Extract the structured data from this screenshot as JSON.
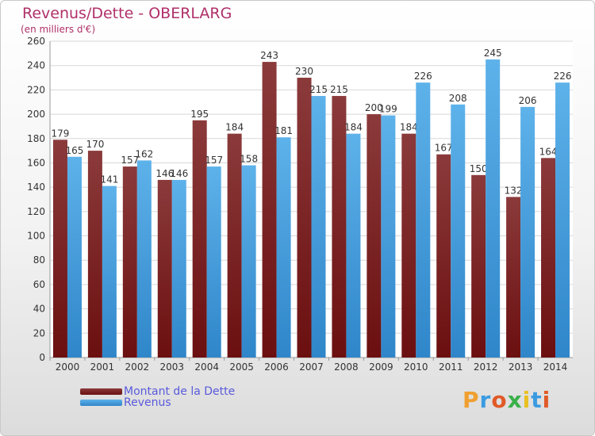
{
  "colors": {
    "debt": "#6b0f10",
    "debt_light": "#8b3a3b",
    "revenue": "#2f86c9",
    "revenue_light": "#5eb2ea",
    "title": "#b0306a",
    "legend_text": "#5a5adc"
  },
  "chart_data": {
    "type": "bar",
    "title": "Revenus/Dette - OBERLARG",
    "subtitle": "(en milliers d'€)",
    "categories": [
      "2000",
      "2001",
      "2002",
      "2003",
      "2004",
      "2005",
      "2006",
      "2007",
      "2008",
      "2009",
      "2010",
      "2011",
      "2012",
      "2013",
      "2014"
    ],
    "series": [
      {
        "name": "Montant de la Dette",
        "values": [
          179,
          170,
          157,
          146,
          195,
          184,
          243,
          230,
          215,
          200,
          184,
          167,
          150,
          132,
          164
        ]
      },
      {
        "name": "Revenus",
        "values": [
          165,
          141,
          162,
          146,
          157,
          158,
          181,
          215,
          184,
          199,
          226,
          208,
          245,
          206,
          226
        ]
      }
    ],
    "ylim": [
      0,
      260
    ],
    "yticks": [
      0,
      20,
      40,
      60,
      80,
      100,
      120,
      140,
      160,
      180,
      200,
      220,
      240,
      260
    ],
    "grid": true,
    "legend_position": "bottom-left"
  },
  "legend": {
    "items": [
      {
        "label": "Montant de la Dette"
      },
      {
        "label": "Revenus"
      }
    ]
  },
  "logo": {
    "text": "Proxiti",
    "letter_colors": [
      "#f0a030",
      "#3a9be0",
      "#e05a28",
      "#3ab04a",
      "#e8c020",
      "#3a9be0",
      "#e05a28"
    ]
  }
}
